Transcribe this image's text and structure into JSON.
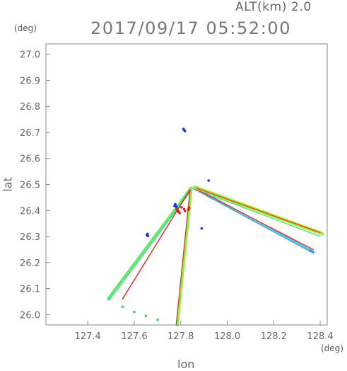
{
  "header": {
    "alt_label": "ALT(km) 2.0",
    "timestamp": "2017/09/17 05:52:00",
    "y_unit": "(deg)",
    "x_unit": "(deg)"
  },
  "chart_data": {
    "type": "scatter",
    "title": "2017/09/17 05:52:00",
    "xlabel": "lon",
    "ylabel": "lat",
    "xlim": [
      127.22,
      128.43
    ],
    "ylim": [
      25.96,
      27.04
    ],
    "xticks": [
      127.4,
      127.6,
      127.8,
      128.0,
      128.2,
      128.4
    ],
    "xtick_labels": [
      "127.4",
      "127.6",
      "127.8",
      "128.0",
      "128.2",
      "128.4"
    ],
    "yticks": [
      26.0,
      26.1,
      26.2,
      26.3,
      26.4,
      26.5,
      26.6,
      26.7,
      26.8,
      26.9,
      27.0
    ],
    "ytick_labels": [
      "26.0",
      "26.1",
      "26.2",
      "26.3",
      "26.4",
      "26.5",
      "26.6",
      "26.7",
      "26.8",
      "26.9",
      "27.0"
    ],
    "grid": false,
    "origin": {
      "lon": 127.845,
      "lat": 26.485
    },
    "beams": [
      {
        "color": "#44dd88",
        "width": 5,
        "points": [
          [
            127.845,
            26.485
          ],
          [
            127.49,
            26.06
          ]
        ]
      },
      {
        "color": "#77ee55",
        "width": 2,
        "points": [
          [
            127.835,
            26.48
          ],
          [
            127.5,
            26.07
          ]
        ]
      },
      {
        "color": "#dd2222",
        "width": 1.5,
        "points": [
          [
            127.84,
            26.48
          ],
          [
            127.55,
            26.06
          ]
        ]
      },
      {
        "color": "#88ee33",
        "width": 4,
        "points": [
          [
            127.845,
            26.485
          ],
          [
            127.785,
            25.96
          ]
        ]
      },
      {
        "color": "#dd2222",
        "width": 1.2,
        "points": [
          [
            127.84,
            26.48
          ],
          [
            127.78,
            25.96
          ]
        ]
      },
      {
        "color": "#3399dd",
        "width": 4,
        "points": [
          [
            127.86,
            26.485
          ],
          [
            128.37,
            26.24
          ]
        ]
      },
      {
        "color": "#66ccee",
        "width": 2,
        "points": [
          [
            127.87,
            26.48
          ],
          [
            128.35,
            26.25
          ]
        ]
      },
      {
        "color": "#dd4422",
        "width": 1.5,
        "points": [
          [
            127.87,
            26.48
          ],
          [
            128.37,
            26.25
          ]
        ]
      },
      {
        "color": "#99ee44",
        "width": 5,
        "points": [
          [
            127.86,
            26.49
          ],
          [
            128.41,
            26.31
          ]
        ]
      },
      {
        "color": "#ee4411",
        "width": 1.5,
        "points": [
          [
            127.87,
            26.485
          ],
          [
            128.4,
            26.315
          ]
        ]
      },
      {
        "color": "#66dd66",
        "width": 1.5,
        "points": [
          [
            127.94,
            26.455
          ],
          [
            128.4,
            26.3
          ]
        ]
      }
    ],
    "clusters": [
      {
        "color": "#2233dd",
        "points": [
          [
            127.812,
            26.713
          ],
          [
            127.815,
            26.709
          ],
          [
            127.818,
            26.705
          ]
        ]
      },
      {
        "color": "#2233dd",
        "points": [
          [
            127.776,
            26.424
          ],
          [
            127.779,
            26.418
          ],
          [
            127.782,
            26.413
          ],
          [
            127.773,
            26.417
          ]
        ]
      },
      {
        "color": "#2233dd",
        "points": [
          [
            127.654,
            26.305
          ],
          [
            127.657,
            26.31
          ],
          [
            127.659,
            26.302
          ]
        ]
      },
      {
        "color": "#2233cc",
        "points": [
          [
            127.89,
            26.331
          ]
        ]
      },
      {
        "color": "#223399",
        "points": [
          [
            127.92,
            26.515
          ]
        ]
      },
      {
        "color": "#ee1111",
        "points": [
          [
            127.782,
            26.405
          ],
          [
            127.786,
            26.4
          ],
          [
            127.79,
            26.395
          ],
          [
            127.795,
            26.39
          ],
          [
            127.803,
            26.412
          ],
          [
            127.814,
            26.405
          ],
          [
            127.818,
            26.398
          ]
        ]
      },
      {
        "color": "#ee1111",
        "points": [
          [
            127.833,
            26.404
          ],
          [
            127.836,
            26.41
          ]
        ]
      },
      {
        "color": "#44cc66",
        "points": [
          [
            127.55,
            26.03
          ],
          [
            127.6,
            26.01
          ],
          [
            127.65,
            25.995
          ],
          [
            127.7,
            25.98
          ]
        ]
      }
    ]
  }
}
